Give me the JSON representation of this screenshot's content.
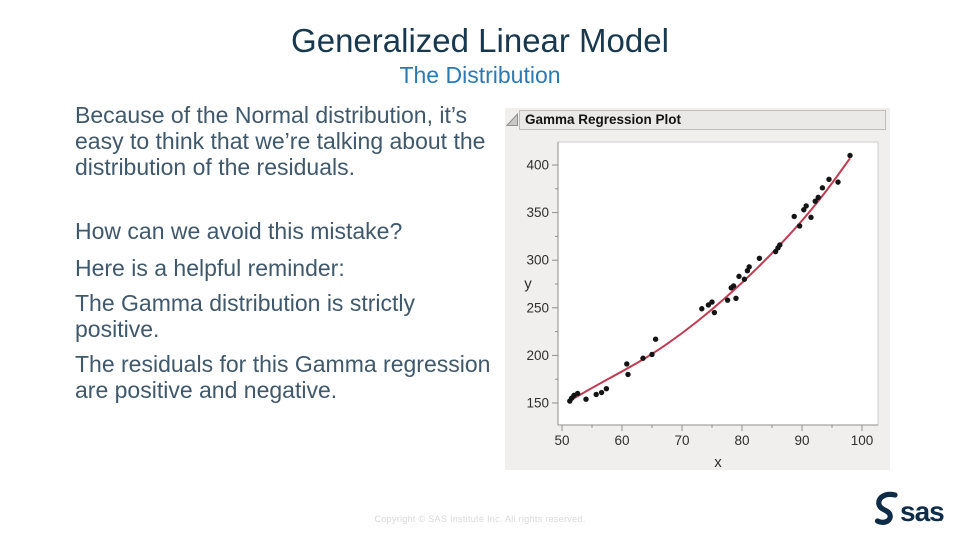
{
  "slide": {
    "title": "Generalized Linear Model",
    "subtitle": "The Distribution",
    "paragraphs": [
      "Because of the Normal distribution, it’s easy to think that we’re talking about the distribution of the residuals.",
      "How can we avoid this mistake?",
      "Here is a helpful reminder:",
      "The Gamma distribution is strictly positive.",
      "The residuals for this Gamma regression are positive and negative."
    ],
    "footer": "Copyright © SAS Institute Inc. All rights reserved.",
    "logo_text": "sas"
  },
  "colors": {
    "title_navy": "#17384f",
    "subtitle_blue": "#2b7ab4",
    "body_slate": "#40586b",
    "panel_bg": "#f0efee",
    "header_bg": "#eae9e7",
    "header_border": "#bebdbb",
    "plot_frame": "#cfcecd",
    "axis_line": "#8f8f8f",
    "tick_text": "#2e2e2e",
    "point_black": "#141414",
    "fit_red": "#c13b52",
    "footer_gray": "#d9d9d9",
    "logo_navy": "#0e2b47"
  },
  "chart_data": {
    "type": "scatter",
    "title": "Gamma Regression Plot",
    "xlabel": "x",
    "ylabel": "y",
    "xlim": [
      49,
      103
    ],
    "ylim": [
      125,
      425
    ],
    "x_ticks": [
      50,
      60,
      70,
      80,
      90,
      100
    ],
    "x_minor_ticks": [
      55,
      65,
      75,
      85,
      95
    ],
    "y_ticks": [
      150,
      200,
      250,
      300,
      350,
      400
    ],
    "y_minor_ticks": [
      175,
      225,
      275,
      325,
      375
    ],
    "grid": false,
    "legend": false,
    "points": [
      [
        51.3,
        152
      ],
      [
        51.6,
        155
      ],
      [
        52,
        158
      ],
      [
        52.6,
        160
      ],
      [
        54,
        154
      ],
      [
        55.7,
        159
      ],
      [
        56.6,
        161
      ],
      [
        57.4,
        165
      ],
      [
        60.8,
        191
      ],
      [
        61,
        180
      ],
      [
        63.5,
        197
      ],
      [
        65,
        201
      ],
      [
        65.6,
        217
      ],
      [
        73.3,
        249
      ],
      [
        74.4,
        253
      ],
      [
        75,
        256
      ],
      [
        75.4,
        245
      ],
      [
        77.6,
        258
      ],
      [
        78.2,
        271
      ],
      [
        78.6,
        273
      ],
      [
        79,
        260
      ],
      [
        79.5,
        283
      ],
      [
        80.4,
        280
      ],
      [
        80.9,
        289
      ],
      [
        81.2,
        293
      ],
      [
        82.9,
        302
      ],
      [
        85.6,
        309
      ],
      [
        86,
        313
      ],
      [
        86.3,
        316
      ],
      [
        88.7,
        346
      ],
      [
        89.6,
        336
      ],
      [
        90.3,
        353
      ],
      [
        90.7,
        357
      ],
      [
        91.5,
        345
      ],
      [
        92.2,
        362
      ],
      [
        92.7,
        366
      ],
      [
        93.4,
        376
      ],
      [
        94.5,
        385
      ],
      [
        96,
        382
      ],
      [
        98,
        410
      ]
    ],
    "fit_curve": [
      [
        51.2,
        152
      ],
      [
        55,
        166
      ],
      [
        60,
        183
      ],
      [
        65,
        201
      ],
      [
        70,
        223
      ],
      [
        75,
        248
      ],
      [
        80,
        276
      ],
      [
        85,
        307
      ],
      [
        90,
        341
      ],
      [
        94,
        372
      ],
      [
        98,
        407
      ]
    ]
  }
}
